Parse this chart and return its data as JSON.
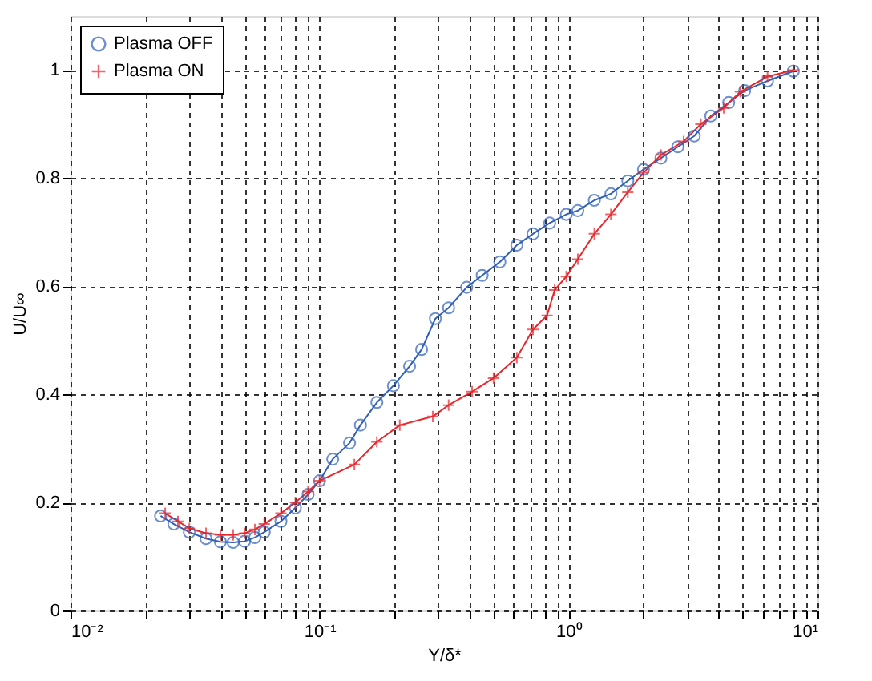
{
  "chart_data": {
    "type": "line",
    "xlabel": "Y/δ*",
    "ylabel": "U/U∞",
    "log": "x",
    "grid": true,
    "legend": "top left",
    "line_style": "solid",
    "xlim": [
      0.01,
      10
    ],
    "ylim": [
      0,
      1.1
    ],
    "xticks": [
      {
        "value": 0.01,
        "label": "10⁻²"
      },
      {
        "value": 0.02,
        "label": null
      },
      {
        "value": 0.03,
        "label": null
      },
      {
        "value": 0.04,
        "label": null
      },
      {
        "value": 0.05,
        "label": null
      },
      {
        "value": 0.06,
        "label": null
      },
      {
        "value": 0.07,
        "label": null
      },
      {
        "value": 0.08,
        "label": null
      },
      {
        "value": 0.09,
        "label": null
      },
      {
        "value": 0.1,
        "label": "10⁻¹"
      },
      {
        "value": 0.2,
        "label": null
      },
      {
        "value": 0.3,
        "label": null
      },
      {
        "value": 0.4,
        "label": null
      },
      {
        "value": 0.5,
        "label": null
      },
      {
        "value": 0.6,
        "label": null
      },
      {
        "value": 0.7,
        "label": null
      },
      {
        "value": 0.8,
        "label": null
      },
      {
        "value": 0.9,
        "label": null
      },
      {
        "value": 1,
        "label": "10⁰"
      },
      {
        "value": 2,
        "label": null
      },
      {
        "value": 3,
        "label": null
      },
      {
        "value": 4,
        "label": null
      },
      {
        "value": 5,
        "label": null
      },
      {
        "value": 6,
        "label": null
      },
      {
        "value": 7,
        "label": null
      },
      {
        "value": 8,
        "label": null
      },
      {
        "value": 9,
        "label": null
      },
      {
        "value": 10,
        "label": "10¹"
      }
    ],
    "yticks": [
      0,
      0.2,
      0.4,
      0.6,
      0.8,
      1
    ],
    "series": [
      {
        "name": "Plasma OFF",
        "color": "#3060b8",
        "marker": "circle",
        "x": [
          0.023,
          0.026,
          0.03,
          0.035,
          0.04,
          0.045,
          0.05,
          0.055,
          0.06,
          0.07,
          0.08,
          0.09,
          0.1,
          0.113,
          0.132,
          0.146,
          0.17,
          0.198,
          0.23,
          0.257,
          0.292,
          0.33,
          0.39,
          0.45,
          0.53,
          0.62,
          0.72,
          0.84,
          0.98,
          1.09,
          1.27,
          1.48,
          1.73,
          2.0,
          2.35,
          2.75,
          3.2,
          3.73,
          4.4,
          5.1,
          6.3,
          8.0
        ],
        "values": [
          0.175,
          0.16,
          0.145,
          0.133,
          0.127,
          0.126,
          0.128,
          0.135,
          0.145,
          0.165,
          0.19,
          0.215,
          0.24,
          0.28,
          0.31,
          0.343,
          0.385,
          0.416,
          0.452,
          0.483,
          0.54,
          0.56,
          0.598,
          0.62,
          0.645,
          0.676,
          0.697,
          0.717,
          0.733,
          0.74,
          0.759,
          0.771,
          0.795,
          0.816,
          0.837,
          0.858,
          0.878,
          0.915,
          0.94,
          0.962,
          0.98,
          0.998
        ]
      },
      {
        "name": "Plasma ON",
        "color": "#e8262b",
        "marker": "cross",
        "x": [
          0.024,
          0.027,
          0.03,
          0.035,
          0.04,
          0.045,
          0.05,
          0.055,
          0.06,
          0.07,
          0.08,
          0.09,
          0.1,
          0.138,
          0.17,
          0.21,
          0.285,
          0.33,
          0.41,
          0.5,
          0.62,
          0.72,
          0.82,
          0.88,
          0.98,
          1.09,
          1.27,
          1.48,
          1.73,
          2.0,
          2.35,
          2.9,
          3.4,
          4.2,
          4.9,
          6.3,
          8.0
        ],
        "values": [
          0.18,
          0.165,
          0.152,
          0.143,
          0.14,
          0.14,
          0.143,
          0.15,
          0.16,
          0.18,
          0.2,
          0.22,
          0.24,
          0.27,
          0.312,
          0.343,
          0.359,
          0.38,
          0.405,
          0.43,
          0.468,
          0.52,
          0.546,
          0.593,
          0.618,
          0.65,
          0.697,
          0.733,
          0.774,
          0.81,
          0.843,
          0.868,
          0.9,
          0.93,
          0.96,
          0.988,
          1.0
        ]
      }
    ]
  }
}
